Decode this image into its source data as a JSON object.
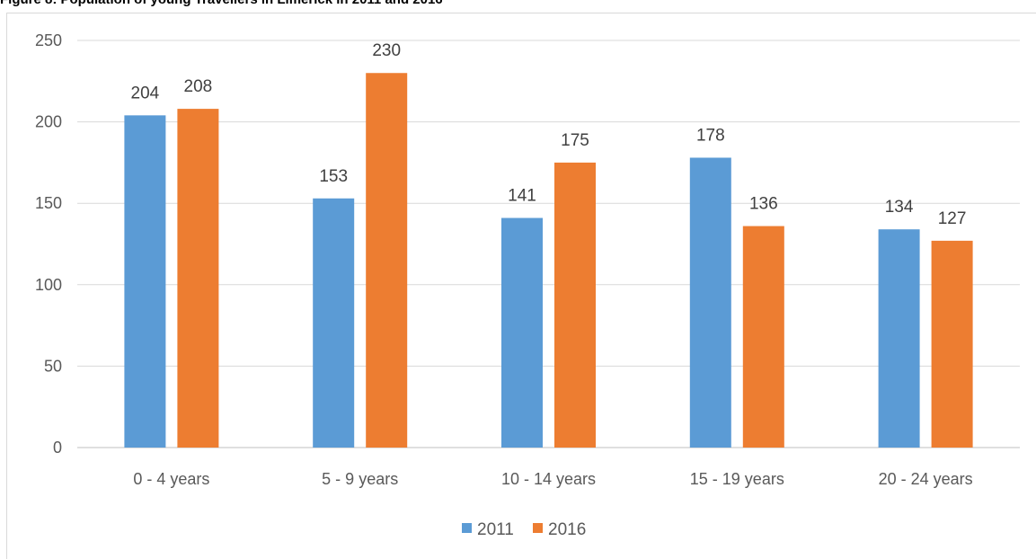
{
  "figure_title": "Figure 8: Population of young Travellers in Limerick in 2011 and 2016",
  "chart_data": {
    "type": "bar",
    "title": "",
    "xlabel": "",
    "ylabel": "",
    "categories": [
      "0 - 4 years",
      "5 - 9 years",
      "10 - 14 years",
      "15 - 19 years",
      "20 - 24 years"
    ],
    "series": [
      {
        "name": "2011",
        "values": [
          204,
          153,
          141,
          178,
          134
        ],
        "color": "#5b9bd5"
      },
      {
        "name": "2016",
        "values": [
          208,
          230,
          175,
          136,
          127
        ],
        "color": "#ed7d31"
      }
    ],
    "ylim": [
      0,
      250
    ],
    "yticks": [
      "0",
      "50",
      "100",
      "150",
      "200",
      "250"
    ],
    "grid": true,
    "legend_position": "bottom",
    "data_labels": true
  }
}
